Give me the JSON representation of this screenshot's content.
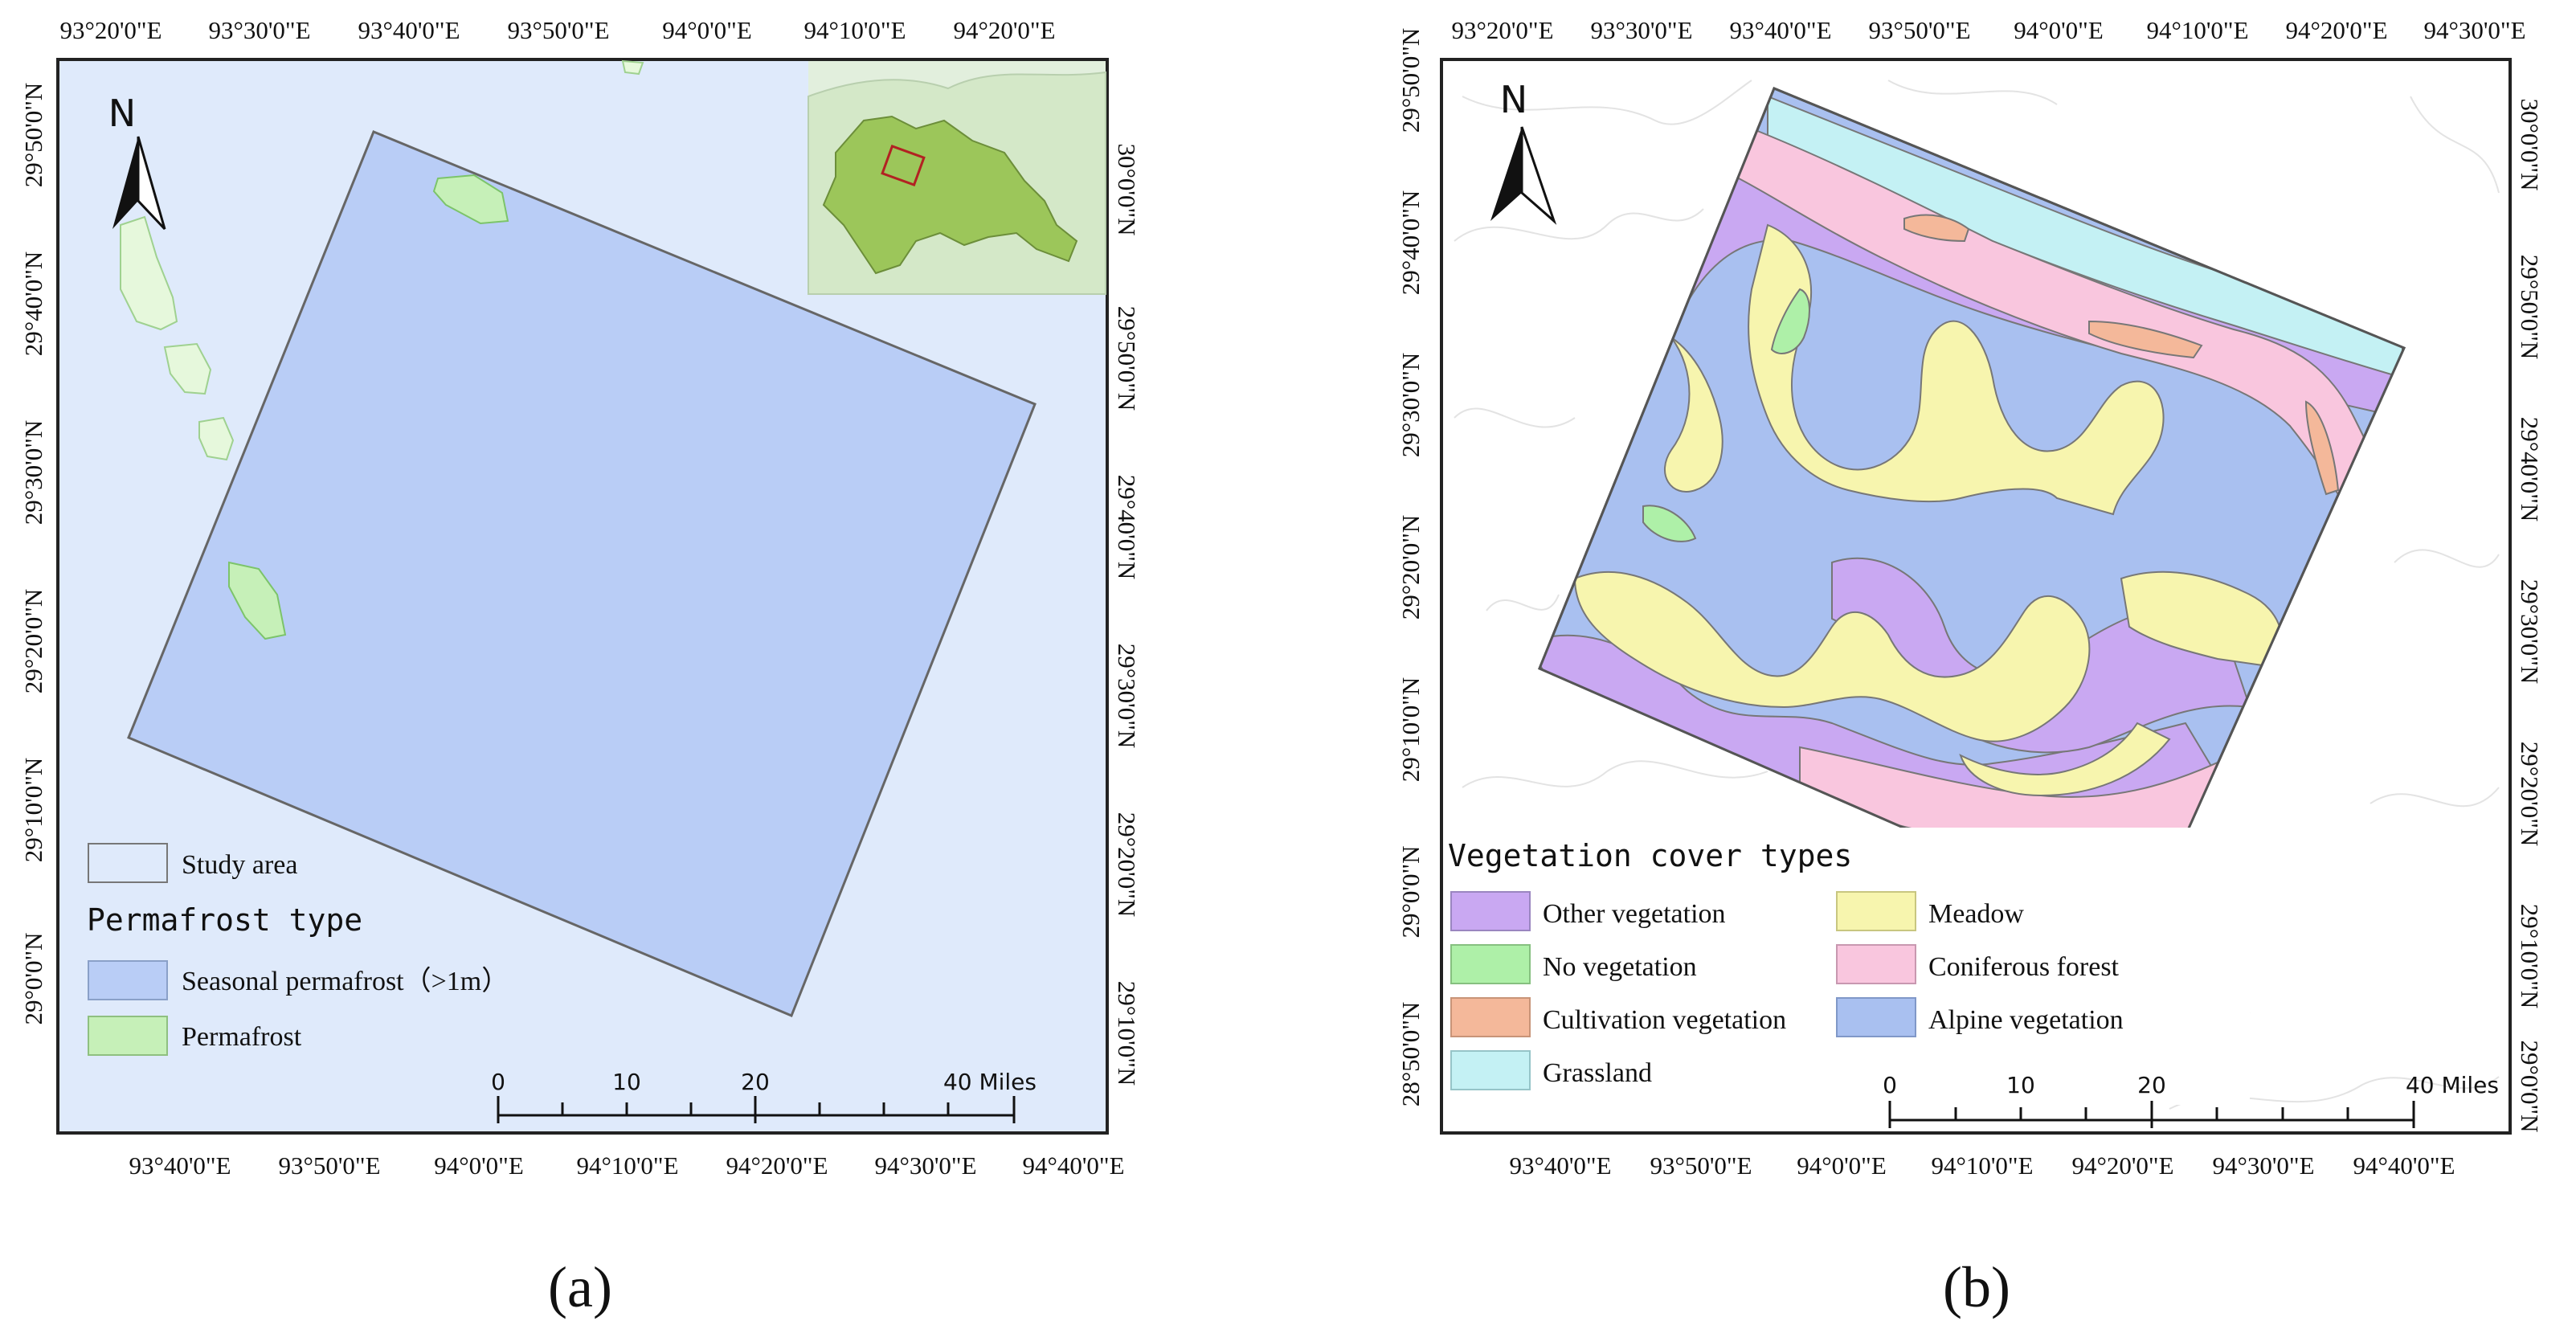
{
  "panel_a": {
    "caption": "(a)",
    "top_ticks": [
      "93°20'0\"E",
      "93°30'0\"E",
      "93°40'0\"E",
      "93°50'0\"E",
      "94°0'0\"E",
      "94°10'0\"E",
      "94°20'0\"E"
    ],
    "bottom_ticks": [
      "93°40'0\"E",
      "93°50'0\"E",
      "94°0'0\"E",
      "94°10'0\"E",
      "94°20'0\"E",
      "94°30'0\"E",
      "94°40'0\"E"
    ],
    "left_ticks": [
      "29°50'0\"N",
      "29°40'0\"N",
      "29°30'0\"N",
      "29°20'0\"N",
      "29°10'0\"N",
      "29°0'0\"N"
    ],
    "right_ticks": [
      "30°0'0\"N",
      "29°50'0\"N",
      "29°40'0\"N",
      "29°30'0\"N",
      "29°20'0\"N",
      "29°10'0\"N"
    ],
    "north": "N",
    "legend": {
      "study_area": "Study area",
      "title": "Permafrost type",
      "items": [
        {
          "label": "Seasonal permafrost（>1m）",
          "color": "#b9cdf6"
        },
        {
          "label": "Permafrost",
          "color": "#c6f0b8"
        }
      ]
    },
    "scale": {
      "labels": [
        "0",
        "10",
        "20",
        "40 Miles"
      ]
    }
  },
  "panel_b": {
    "caption": "(b)",
    "top_ticks": [
      "93°20'0\"E",
      "93°30'0\"E",
      "93°40'0\"E",
      "93°50'0\"E",
      "94°0'0\"E",
      "94°10'0\"E",
      "94°20'0\"E",
      "94°30'0\"E"
    ],
    "bottom_ticks": [
      "93°40'0\"E",
      "93°50'0\"E",
      "94°0'0\"E",
      "94°10'0\"E",
      "94°20'0\"E",
      "94°30'0\"E",
      "94°40'0\"E"
    ],
    "left_ticks": [
      "29°50'0\"N",
      "29°40'0\"N",
      "29°30'0\"N",
      "29°20'0\"N",
      "29°10'0\"N",
      "29°0'0\"N",
      "28°50'0\"N"
    ],
    "right_ticks": [
      "30°0'0\"N",
      "29°50'0\"N",
      "29°40'0\"N",
      "29°30'0\"N",
      "29°20'0\"N",
      "29°10'0\"N",
      "29°0'0\"N"
    ],
    "north": "N",
    "legend": {
      "title": "Vegetation cover types",
      "items": [
        {
          "label": "Other vegetation",
          "color": "#c9a8f2"
        },
        {
          "label": "No vegetation",
          "color": "#aef0a8"
        },
        {
          "label": "Cultivation vegetation",
          "color": "#f4b89a"
        },
        {
          "label": "Grassland",
          "color": "#c4f1f4"
        },
        {
          "label": "Meadow",
          "color": "#f7f5ae"
        },
        {
          "label": "Coniferous forest",
          "color": "#f9c6de"
        },
        {
          "label": "Alpine vegetation",
          "color": "#a9c0f0"
        }
      ]
    },
    "scale": {
      "labels": [
        "0",
        "10",
        "20",
        "40 Miles"
      ]
    }
  }
}
